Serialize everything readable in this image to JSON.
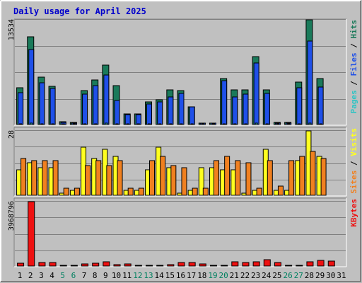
{
  "chart_data": {
    "type": "bar",
    "title": "Daily usage for April 2025",
    "categories": [
      "1",
      "2",
      "3",
      "4",
      "5",
      "6",
      "7",
      "8",
      "9",
      "10",
      "11",
      "12",
      "13",
      "14",
      "15",
      "16",
      "17",
      "18",
      "19",
      "20",
      "21",
      "22",
      "23",
      "24",
      "25",
      "26",
      "27",
      "28",
      "29",
      "30",
      "31"
    ],
    "weekend_days": [
      "5",
      "6",
      "12",
      "13",
      "19",
      "20",
      "26",
      "27"
    ],
    "colors": {
      "background": "#c0c0c0",
      "hits": "#1a7a5a",
      "files": "#1f50e8",
      "pages": "#2dc4c4",
      "visits": "#ffff20",
      "sites": "#f08020",
      "kbytes": "#ee1111",
      "title": "#0000cc",
      "weekend_label": "#008060",
      "weekday_label": "#000000"
    },
    "panels": [
      {
        "id": "hits-files-pages",
        "max_label": "13534",
        "ylim": [
          0,
          13534
        ],
        "legend": [
          {
            "name": "Hits",
            "color": "#1a7a5a"
          },
          {
            "name": "Files",
            "color": "#1f50e8"
          },
          {
            "name": "Pages",
            "color": "#2dc4c4"
          }
        ],
        "series": [
          {
            "name": "Hits",
            "values": [
              4800,
              11300,
              6100,
              4950,
              350,
              250,
              4400,
              5800,
              7700,
              5000,
              1400,
              1400,
              2900,
              3200,
              4450,
              4400,
              2300,
              200,
              200,
              5950,
              4450,
              4450,
              8750,
              4450,
              300,
              250,
              5500,
              13534,
              5950,
              0,
              0
            ]
          },
          {
            "name": "Files",
            "values": [
              4150,
              9700,
              5350,
              4700,
              250,
              150,
              3900,
              5050,
              6400,
              3150,
              1300,
              1300,
              2650,
              2900,
              3600,
              4000,
              2250,
              150,
              150,
              5650,
              3550,
              3950,
              8000,
              4000,
              200,
              150,
              4750,
              10800,
              4850,
              0,
              0
            ]
          },
          {
            "name": "Pages",
            "values": [
              100,
              150,
              100,
              80,
              30,
              20,
              90,
              90,
              150,
              100,
              40,
              40,
              60,
              80,
              70,
              80,
              50,
              20,
              20,
              100,
              90,
              90,
              160,
              70,
              20,
              20,
              100,
              200,
              100,
              0,
              0
            ]
          }
        ]
      },
      {
        "id": "visits-sites",
        "max_label": "28",
        "ylim": [
          0,
          28
        ],
        "legend": [
          {
            "name": "Visits",
            "color": "#ffff20"
          },
          {
            "name": "Sites",
            "color": "#f08020"
          }
        ],
        "series": [
          {
            "name": "Visits",
            "values": [
              11,
              14,
              12,
              12,
              1,
              2,
              21,
              16,
              20,
              17,
              2,
              2,
              11,
              21,
              12,
              1,
              2,
              12,
              12,
              11,
              11,
              1,
              2,
              20,
              2,
              2,
              15,
              28,
              17,
              0,
              0
            ]
          },
          {
            "name": "Sites",
            "values": [
              16,
              15,
              15,
              15,
              3,
              3,
              13,
              15,
              13,
              15,
              3,
              3,
              15,
              17,
              13,
              12,
              3,
              3,
              15,
              17,
              15,
              14,
              3,
              15,
              4,
              15,
              17,
              19,
              16,
              0,
              0
            ]
          }
        ]
      },
      {
        "id": "kbytes",
        "max_label": "3968796",
        "ylim": [
          0,
          3968796
        ],
        "legend": [
          {
            "name": "KBytes",
            "color": "#ee1111"
          }
        ],
        "series": [
          {
            "name": "KBytes",
            "values": [
              180000,
              3968796,
              230000,
              200000,
              15000,
              15000,
              130000,
              160000,
              270000,
              90000,
              120000,
              10000,
              10000,
              60000,
              70000,
              230000,
              220000,
              110000,
              10000,
              10000,
              240000,
              200000,
              250000,
              390000,
              220000,
              20000,
              20000,
              240000,
              330000,
              300000,
              0
            ]
          }
        ]
      }
    ]
  }
}
